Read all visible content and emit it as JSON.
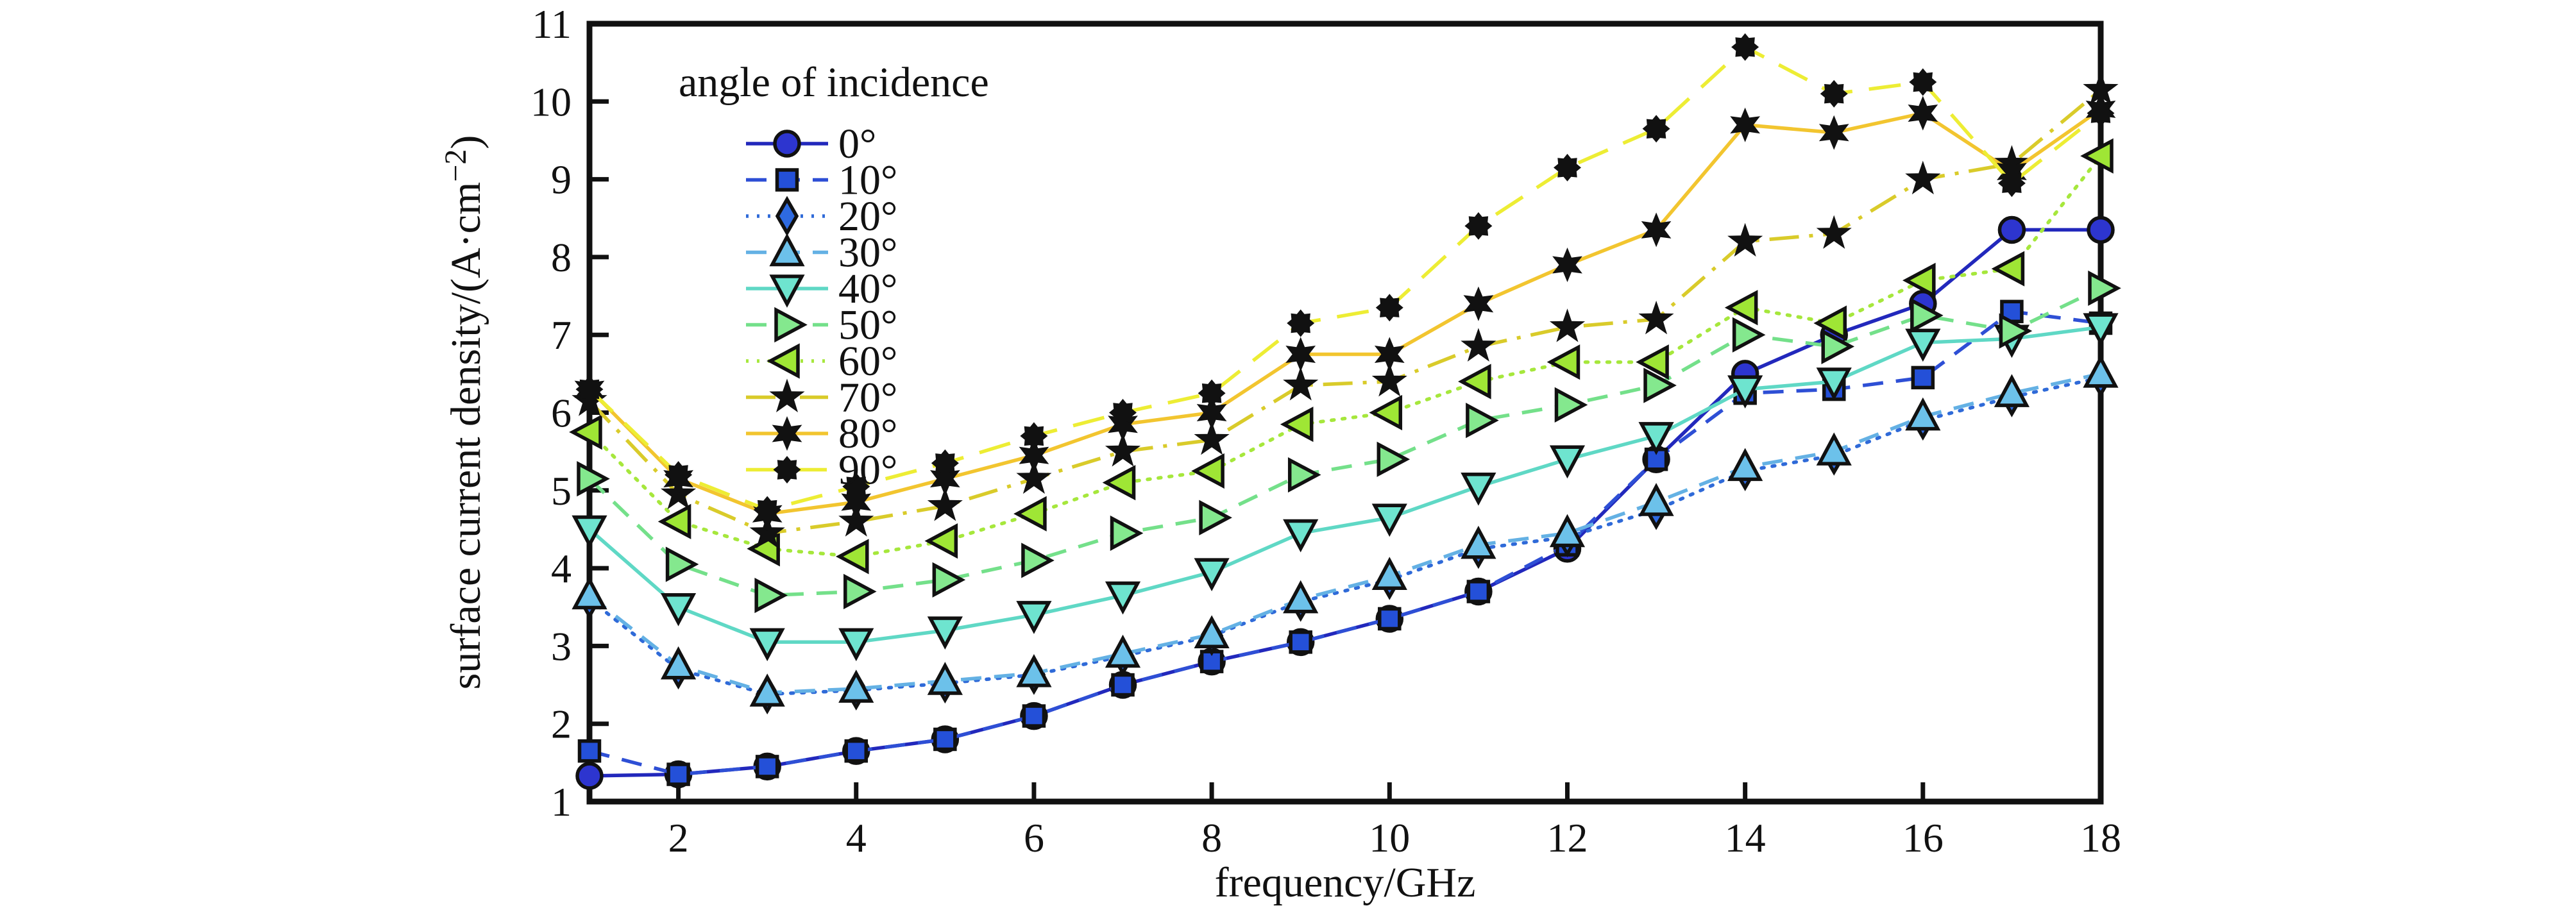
{
  "chart_data": {
    "type": "line",
    "title": "",
    "xlabel": "frequency/GHz",
    "ylabel_prefix": "surface current density/(A·cm",
    "ylabel_sup": "−2",
    "ylabel_suffix": ")",
    "xlim": [
      1,
      18
    ],
    "ylim": [
      1,
      11
    ],
    "x_ticks": [
      2,
      4,
      6,
      8,
      10,
      12,
      14,
      16,
      18
    ],
    "y_ticks": [
      1,
      2,
      3,
      4,
      5,
      6,
      7,
      8,
      9,
      10,
      11
    ],
    "grid": false,
    "legend_title": "angle of incidence",
    "legend_position": "upper-left-inside",
    "x": [
      1,
      2,
      3,
      4,
      5,
      6,
      7,
      8,
      9,
      10,
      11,
      12,
      13,
      14,
      15,
      16,
      17,
      18
    ],
    "series": [
      {
        "name": "0°",
        "color": "#2228bc",
        "marker_fill": "#2d35cf",
        "dash": "solid",
        "marker": "circle",
        "values": [
          1.33,
          1.35,
          1.45,
          1.65,
          1.8,
          2.1,
          2.5,
          2.8,
          3.05,
          3.35,
          3.7,
          4.25,
          5.4,
          6.5,
          7.0,
          7.4,
          8.35,
          8.35
        ]
      },
      {
        "name": "10°",
        "color": "#2e4fd5",
        "marker_fill": "#2450d8",
        "dash": "dashed",
        "marker": "square",
        "values": [
          1.65,
          1.35,
          1.45,
          1.65,
          1.8,
          2.1,
          2.5,
          2.8,
          3.05,
          3.35,
          3.7,
          4.3,
          5.4,
          6.25,
          6.3,
          6.45,
          7.3,
          7.15
        ]
      },
      {
        "name": "20°",
        "color": "#2f6ad8",
        "marker_fill": "#2e6ae0",
        "dash": "dotted",
        "marker": "diamond",
        "values": [
          3.6,
          2.7,
          2.38,
          2.43,
          2.52,
          2.63,
          2.87,
          3.13,
          3.57,
          3.85,
          4.25,
          4.4,
          4.75,
          5.25,
          5.45,
          5.9,
          6.2,
          6.45
        ]
      },
      {
        "name": "30°",
        "color": "#64b1e4",
        "marker_fill": "#6cc1ea",
        "dash": "dashed",
        "marker": "triangle-up",
        "values": [
          3.65,
          2.75,
          2.4,
          2.45,
          2.55,
          2.65,
          2.9,
          3.15,
          3.6,
          3.9,
          4.3,
          4.45,
          4.85,
          5.3,
          5.5,
          5.95,
          6.25,
          6.5
        ]
      },
      {
        "name": "40°",
        "color": "#5fd8c5",
        "marker_fill": "#6ee4cf",
        "dash": "solid",
        "marker": "triangle-down",
        "values": [
          4.5,
          3.5,
          3.05,
          3.05,
          3.2,
          3.4,
          3.65,
          3.95,
          4.45,
          4.65,
          5.05,
          5.4,
          5.7,
          6.3,
          6.4,
          6.9,
          6.95,
          7.1
        ]
      },
      {
        "name": "50°",
        "color": "#74e08a",
        "marker_fill": "#84e88e",
        "dash": "dashed",
        "marker": "triangle-right",
        "values": [
          5.15,
          4.05,
          3.65,
          3.7,
          3.85,
          4.1,
          4.45,
          4.65,
          5.2,
          5.4,
          5.9,
          6.1,
          6.35,
          7.0,
          6.85,
          7.25,
          7.05,
          7.6
        ]
      },
      {
        "name": "60°",
        "color": "#a6e73c",
        "marker_fill": "#9fe635",
        "dash": "dotted",
        "marker": "triangle-left",
        "values": [
          5.75,
          4.6,
          4.25,
          4.15,
          4.35,
          4.7,
          5.1,
          5.25,
          5.85,
          6.0,
          6.4,
          6.65,
          6.65,
          7.35,
          7.15,
          7.7,
          7.85,
          9.3
        ]
      },
      {
        "name": "70°",
        "color": "#d9cb2a",
        "marker_fill": "#111111",
        "dash": "dashdot",
        "marker": "star5",
        "values": [
          6.15,
          4.95,
          4.45,
          4.6,
          4.8,
          5.15,
          5.5,
          5.65,
          6.35,
          6.4,
          6.85,
          7.1,
          7.2,
          8.2,
          8.3,
          9.0,
          9.2,
          10.15
        ]
      },
      {
        "name": "80°",
        "color": "#f2c52f",
        "marker_fill": "#111111",
        "dash": "solid",
        "marker": "star6",
        "values": [
          6.3,
          5.15,
          4.7,
          4.85,
          5.15,
          5.45,
          5.85,
          6.0,
          6.75,
          6.75,
          7.4,
          7.9,
          8.35,
          9.7,
          9.6,
          9.85,
          9.1,
          9.9
        ]
      },
      {
        "name": "90°",
        "color": "#eded34",
        "marker_fill": "#111111",
        "dash": "longdash",
        "marker": "sun8",
        "values": [
          6.3,
          5.2,
          4.75,
          5.05,
          5.35,
          5.7,
          6.0,
          6.25,
          7.15,
          7.35,
          8.4,
          9.15,
          9.65,
          10.7,
          10.1,
          10.25,
          8.95,
          9.85
        ]
      }
    ]
  }
}
